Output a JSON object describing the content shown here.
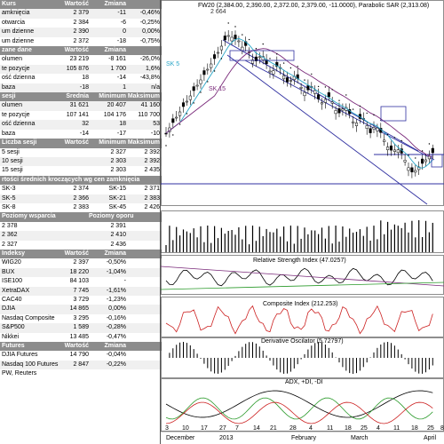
{
  "table": [
    {
      "type": "hd",
      "cells": [
        "Kurs",
        "Wartość",
        "Zmiana",
        ""
      ]
    },
    {
      "type": "rw",
      "cells": [
        "amknięcia",
        "2 379",
        "-11",
        "-0,46%"
      ]
    },
    {
      "type": "rw",
      "cells": [
        "otwarcia",
        "2 384",
        "-6",
        "-0,25%"
      ]
    },
    {
      "type": "rw",
      "cells": [
        "um dzienne",
        "2 390",
        "0",
        "0,00%"
      ]
    },
    {
      "type": "rw",
      "cells": [
        "um dzienne",
        "2 372",
        "-18",
        "-0,75%"
      ]
    },
    {
      "type": "hd",
      "cells": [
        "zane dane",
        "Wartość",
        "Zmiana",
        ""
      ]
    },
    {
      "type": "rw",
      "cells": [
        "olumen",
        "23 219",
        "-8 161",
        "-26,0%"
      ]
    },
    {
      "type": "rw",
      "cells": [
        "te pozycje",
        "105 876",
        "1 700",
        "1,6%"
      ]
    },
    {
      "type": "rw",
      "cells": [
        "ość dzienna",
        "18",
        "-14",
        "-43,8%"
      ]
    },
    {
      "type": "rw",
      "cells": [
        "baza",
        "-18",
        "1",
        "n/a"
      ]
    },
    {
      "type": "hd",
      "cells": [
        "sesji",
        "Średnia",
        "Minimum",
        "Maksimum"
      ]
    },
    {
      "type": "rw",
      "cells": [
        "olumen",
        "31 621",
        "20 407",
        "41 160"
      ]
    },
    {
      "type": "rw",
      "cells": [
        "te pozycje",
        "107 141",
        "104 176",
        "110 700"
      ]
    },
    {
      "type": "rw",
      "cells": [
        "ość dzienna",
        "32",
        "18",
        "53"
      ]
    },
    {
      "type": "rw",
      "cells": [
        "baza",
        "-14",
        "-17",
        "-10"
      ]
    },
    {
      "type": "hd",
      "cells": [
        "Liczba sesji",
        "Wartość",
        "Minimum",
        "Maksimum"
      ]
    },
    {
      "type": "rw",
      "cells": [
        "5 sesji",
        "",
        "2 327",
        "2 392"
      ]
    },
    {
      "type": "rw",
      "cells": [
        "10 sesji",
        "",
        "2 303",
        "2 392"
      ]
    },
    {
      "type": "rw",
      "cells": [
        "15 sesji",
        "",
        "2 303",
        "2 435"
      ]
    },
    {
      "type": "hd",
      "cells": [
        "rtości średnich kroczących wg cen zamknięcia",
        "",
        "",
        ""
      ]
    },
    {
      "type": "rw",
      "cells": [
        "SK-3",
        "2 374",
        "SK-15",
        "2 371"
      ]
    },
    {
      "type": "rw",
      "cells": [
        "SK-5",
        "2 366",
        "SK-21",
        "2 383"
      ]
    },
    {
      "type": "rw",
      "cells": [
        "SK-8",
        "2 383",
        "SK-45",
        "2 426"
      ]
    },
    {
      "type": "hd",
      "cells": [
        "Poziomy wsparcia",
        "",
        "Poziomy oporu",
        ""
      ]
    },
    {
      "type": "rw",
      "cells": [
        "2 378",
        "",
        "2 391",
        ""
      ]
    },
    {
      "type": "rw",
      "cells": [
        "2 362",
        "",
        "2 410",
        ""
      ]
    },
    {
      "type": "rw",
      "cells": [
        "2 327",
        "",
        "2 436",
        ""
      ]
    },
    {
      "type": "hd",
      "cells": [
        "Indeksy",
        "Wartość",
        "Zmiana",
        ""
      ]
    },
    {
      "type": "rw",
      "cells": [
        "WIG20",
        "2 397",
        "-0,50%",
        ""
      ]
    },
    {
      "type": "rw",
      "cells": [
        "BUX",
        "18 220",
        "-1,04%",
        ""
      ]
    },
    {
      "type": "rw",
      "cells": [
        "ISE100",
        "84 103",
        "-",
        ""
      ]
    },
    {
      "type": "rw",
      "cells": [
        "XetraDAX",
        "7 745",
        "-1,61%",
        ""
      ]
    },
    {
      "type": "rw",
      "cells": [
        "CAC40",
        "3 729",
        "-1,23%",
        ""
      ]
    },
    {
      "type": "rw",
      "cells": [
        "DJIA",
        "14 865",
        "0,00%",
        ""
      ]
    },
    {
      "type": "rw",
      "cells": [
        "Nasdaq Composite",
        "3 295",
        "-0,16%",
        ""
      ]
    },
    {
      "type": "rw",
      "cells": [
        "S&P500",
        "1 589",
        "-0,28%",
        ""
      ]
    },
    {
      "type": "rw",
      "cells": [
        "Nikkei",
        "13 485",
        "-0,47%",
        ""
      ]
    },
    {
      "type": "hd",
      "cells": [
        "Futures",
        "Wartość",
        "Zmiana",
        ""
      ]
    },
    {
      "type": "rw",
      "cells": [
        "DJIA Futures",
        "14 790",
        "-0,04%",
        ""
      ]
    },
    {
      "type": "rw",
      "cells": [
        "Nasdaq 100 Futures",
        "2 847",
        "-0,22%",
        ""
      ]
    },
    {
      "type": "rw",
      "cells": [
        "PW, Reuters",
        "",
        "",
        ""
      ]
    }
  ],
  "charts": {
    "main_title": "FW20 (2,384.00, 2,390.00, 2,372.00, 2,379.00, -11.0000), Parabolic SAR (2,313.08)",
    "peak_label": "2 664",
    "sk5_label": "SK 5",
    "sk15_label": "SK 15",
    "rsi_title": "Relative Strength Index (47.0257)",
    "ci_title": "Composite Index (212.253)",
    "do_title": "Derivative Oscilator (5.72797)",
    "adx_title": "ADX, +DI, -DI",
    "month_labels": [
      "December",
      "2013",
      "February",
      "March",
      "April"
    ],
    "day_labels": [
      "3",
      "10",
      "17",
      "27",
      "7",
      "14",
      "21",
      "28",
      "4",
      "11",
      "18",
      "25",
      "4",
      "11",
      "18",
      "25",
      "8"
    ]
  }
}
